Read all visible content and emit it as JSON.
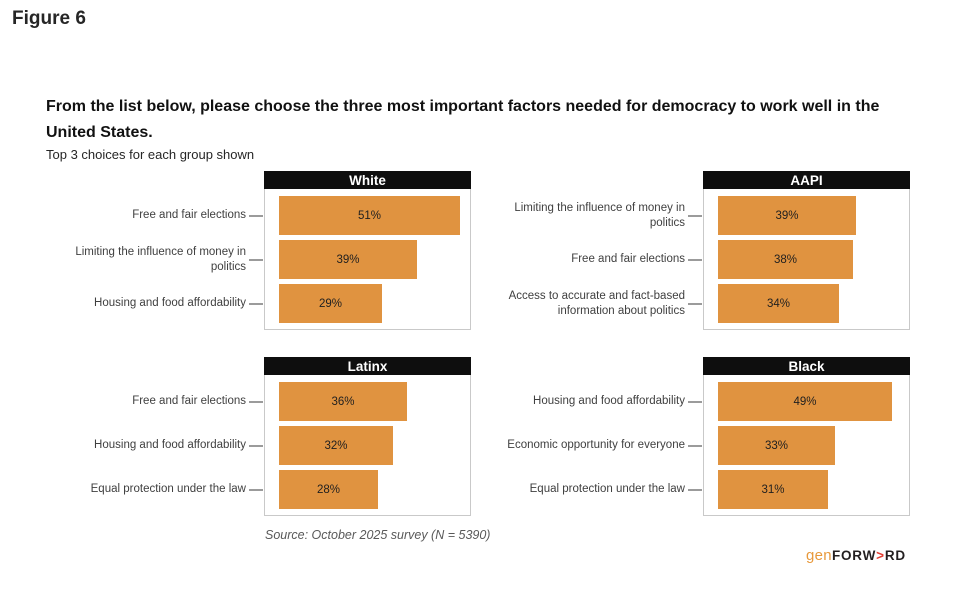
{
  "figure_label": "Figure 6",
  "title": "From the list below, please choose the three most important factors needed for democracy to work well in the United States.",
  "subtitle": "Top 3 choices for each group shown",
  "source": "Source: October 2025 survey (N = 5390)",
  "logo": {
    "gen": "gen",
    "word_pre": "FORW",
    "arrow": ">",
    "word_post": "RD"
  },
  "colors": {
    "bar": "#E09340",
    "panel_header_bg": "#0e0e0e",
    "panel_header_text": "#ffffff",
    "panel_border": "#c9c9c9",
    "category_label": "#3f3f3f",
    "value_label": "#1f1f1f",
    "tick": "#9b9b9b",
    "source_text": "#595959",
    "logo_gen": "#E8993B",
    "logo_arrow": "#E23D32"
  },
  "chart_data": [
    {
      "type": "bar",
      "orientation": "horizontal",
      "title": "White",
      "categories": [
        "Free and fair elections",
        "Limiting the influence of money in politics",
        "Housing and food affordability"
      ],
      "values": [
        51,
        39,
        29
      ],
      "value_labels": [
        "51%",
        "39%",
        "29%"
      ],
      "xlim": [
        0,
        58
      ],
      "grid": false,
      "legend": false
    },
    {
      "type": "bar",
      "orientation": "horizontal",
      "title": "AAPI",
      "categories": [
        "Limiting the influence of money in politics",
        "Free and fair elections",
        "Access to accurate and fact-based information about politics"
      ],
      "values": [
        39,
        38,
        34
      ],
      "value_labels": [
        "39%",
        "38%",
        "34%"
      ],
      "xlim": [
        0,
        58
      ],
      "grid": false,
      "legend": false
    },
    {
      "type": "bar",
      "orientation": "horizontal",
      "title": "Latinx",
      "categories": [
        "Free and fair elections",
        "Housing and food affordability",
        "Equal protection under the law"
      ],
      "values": [
        36,
        32,
        28
      ],
      "value_labels": [
        "36%",
        "32%",
        "28%"
      ],
      "xlim": [
        0,
        58
      ],
      "grid": false,
      "legend": false
    },
    {
      "type": "bar",
      "orientation": "horizontal",
      "title": "Black",
      "categories": [
        "Housing and food affordability",
        "Economic opportunity for everyone",
        "Equal protection under the law"
      ],
      "values": [
        49,
        33,
        31
      ],
      "value_labels": [
        "49%",
        "33%",
        "31%"
      ],
      "xlim": [
        0,
        58
      ],
      "grid": false,
      "legend": false
    }
  ]
}
